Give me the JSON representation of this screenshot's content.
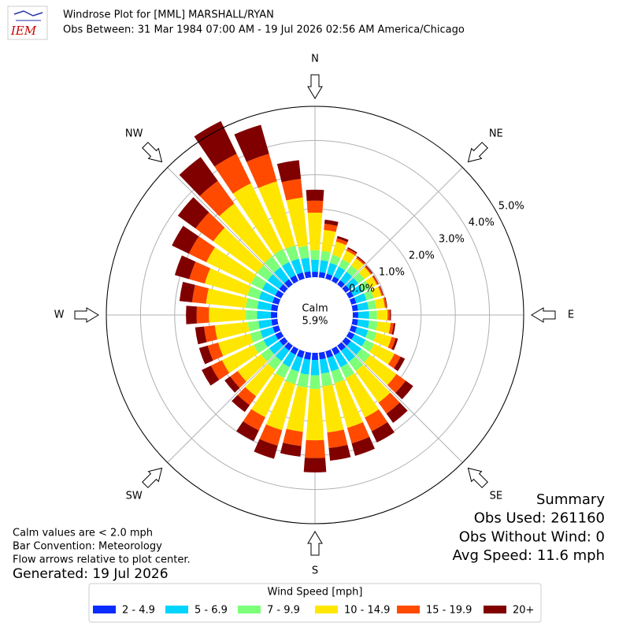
{
  "chart_data": {
    "type": "windrose",
    "logo": "IEM",
    "title": "Windrose Plot for [MML] MARSHALL/RYAN",
    "subtitle": "Obs Between: 31 Mar 1984 07:00 AM - 19 Jul 2026 02:56 AM America/Chicago",
    "x": [
      0,
      10,
      20,
      30,
      40,
      50,
      60,
      70,
      80,
      90,
      100,
      110,
      120,
      130,
      140,
      150,
      160,
      170,
      180,
      190,
      200,
      210,
      220,
      230,
      240,
      250,
      260,
      270,
      280,
      290,
      300,
      310,
      320,
      330,
      340,
      350
    ],
    "xticks": [
      {
        "value": 0,
        "label": "N"
      },
      {
        "value": 45,
        "label": "NE"
      },
      {
        "value": 90,
        "label": "E"
      },
      {
        "value": 135,
        "label": "SE"
      },
      {
        "value": 180,
        "label": "S"
      },
      {
        "value": 225,
        "label": "SW"
      },
      {
        "value": 270,
        "label": "W"
      },
      {
        "value": 315,
        "label": "NW"
      }
    ],
    "ylim": [
      0,
      5
    ],
    "yticks": [
      {
        "value": 0,
        "label": "0.0%"
      },
      {
        "value": 1,
        "label": "1.0%"
      },
      {
        "value": 2,
        "label": "2.0%"
      },
      {
        "value": 3,
        "label": "3.0%"
      },
      {
        "value": 4,
        "label": "4.0%"
      },
      {
        "value": 5,
        "label": "5.0%"
      }
    ],
    "grid": true,
    "calm": {
      "label": "Calm",
      "value": 5.9,
      "value_label": "5.9%"
    },
    "legend_title": "Wind Speed [mph]",
    "series": [
      {
        "name": "2 - 4.9",
        "color": "#0a2cff",
        "values": [
          0.16,
          0.16,
          0.15,
          0.15,
          0.15,
          0.15,
          0.15,
          0.15,
          0.16,
          0.16,
          0.16,
          0.17,
          0.18,
          0.19,
          0.19,
          0.2,
          0.2,
          0.2,
          0.21,
          0.21,
          0.2,
          0.19,
          0.18,
          0.18,
          0.19,
          0.18,
          0.18,
          0.19,
          0.19,
          0.19,
          0.19,
          0.19,
          0.19,
          0.19,
          0.19,
          0.18
        ]
      },
      {
        "name": "5 - 6.9",
        "color": "#00d4ff",
        "values": [
          0.35,
          0.35,
          0.33,
          0.32,
          0.31,
          0.31,
          0.31,
          0.31,
          0.31,
          0.32,
          0.33,
          0.34,
          0.36,
          0.38,
          0.39,
          0.4,
          0.41,
          0.42,
          0.45,
          0.44,
          0.42,
          0.4,
          0.38,
          0.37,
          0.38,
          0.38,
          0.38,
          0.4,
          0.4,
          0.41,
          0.42,
          0.42,
          0.43,
          0.43,
          0.42,
          0.4
        ]
      },
      {
        "name": "7 - 9.9",
        "color": "#7dff7a",
        "values": [
          0.28,
          0.27,
          0.25,
          0.24,
          0.23,
          0.22,
          0.22,
          0.22,
          0.22,
          0.23,
          0.25,
          0.26,
          0.28,
          0.32,
          0.34,
          0.35,
          0.36,
          0.37,
          0.4,
          0.38,
          0.38,
          0.36,
          0.32,
          0.3,
          0.32,
          0.31,
          0.31,
          0.33,
          0.34,
          0.35,
          0.37,
          0.38,
          0.4,
          0.42,
          0.4,
          0.35
        ]
      },
      {
        "name": "10 - 14.9",
        "color": "#ffe600",
        "values": [
          1.1,
          0.62,
          0.4,
          0.28,
          0.25,
          0.23,
          0.23,
          0.24,
          0.26,
          0.31,
          0.38,
          0.46,
          0.66,
          0.95,
          1.14,
          1.28,
          1.36,
          1.36,
          1.5,
          1.3,
          1.4,
          1.27,
          0.95,
          0.84,
          1.03,
          0.97,
          0.97,
          1.08,
          1.17,
          1.3,
          1.45,
          1.58,
          1.9,
          2.14,
          1.95,
          1.42
        ]
      },
      {
        "name": "15 - 19.9",
        "color": "#ff4a00",
        "values": [
          0.35,
          0.18,
          0.1,
          0.07,
          0.05,
          0.04,
          0.04,
          0.04,
          0.05,
          0.07,
          0.09,
          0.12,
          0.2,
          0.33,
          0.4,
          0.45,
          0.47,
          0.46,
          0.52,
          0.42,
          0.47,
          0.43,
          0.32,
          0.27,
          0.36,
          0.32,
          0.32,
          0.36,
          0.41,
          0.47,
          0.57,
          0.64,
          0.82,
          0.96,
          0.84,
          0.55
        ]
      },
      {
        "name": "20+",
        "color": "#800000",
        "values": [
          0.32,
          0.12,
          0.07,
          0.04,
          0.03,
          0.03,
          0.02,
          0.02,
          0.02,
          0.03,
          0.05,
          0.07,
          0.14,
          0.27,
          0.33,
          0.36,
          0.38,
          0.37,
          0.42,
          0.31,
          0.4,
          0.35,
          0.25,
          0.2,
          0.3,
          0.26,
          0.26,
          0.31,
          0.37,
          0.44,
          0.55,
          0.64,
          0.86,
          1.06,
          0.88,
          0.55
        ]
      }
    ],
    "notes": [
      "Calm values are < 2.0 mph",
      "Bar Convention: Meteorology",
      "Flow arrows relative to plot center."
    ],
    "generated": "Generated: 19 Jul 2026",
    "summary": [
      "Summary",
      "Obs Used: 261160",
      "Obs Without Wind: 0",
      "Avg Speed: 11.6 mph"
    ]
  }
}
